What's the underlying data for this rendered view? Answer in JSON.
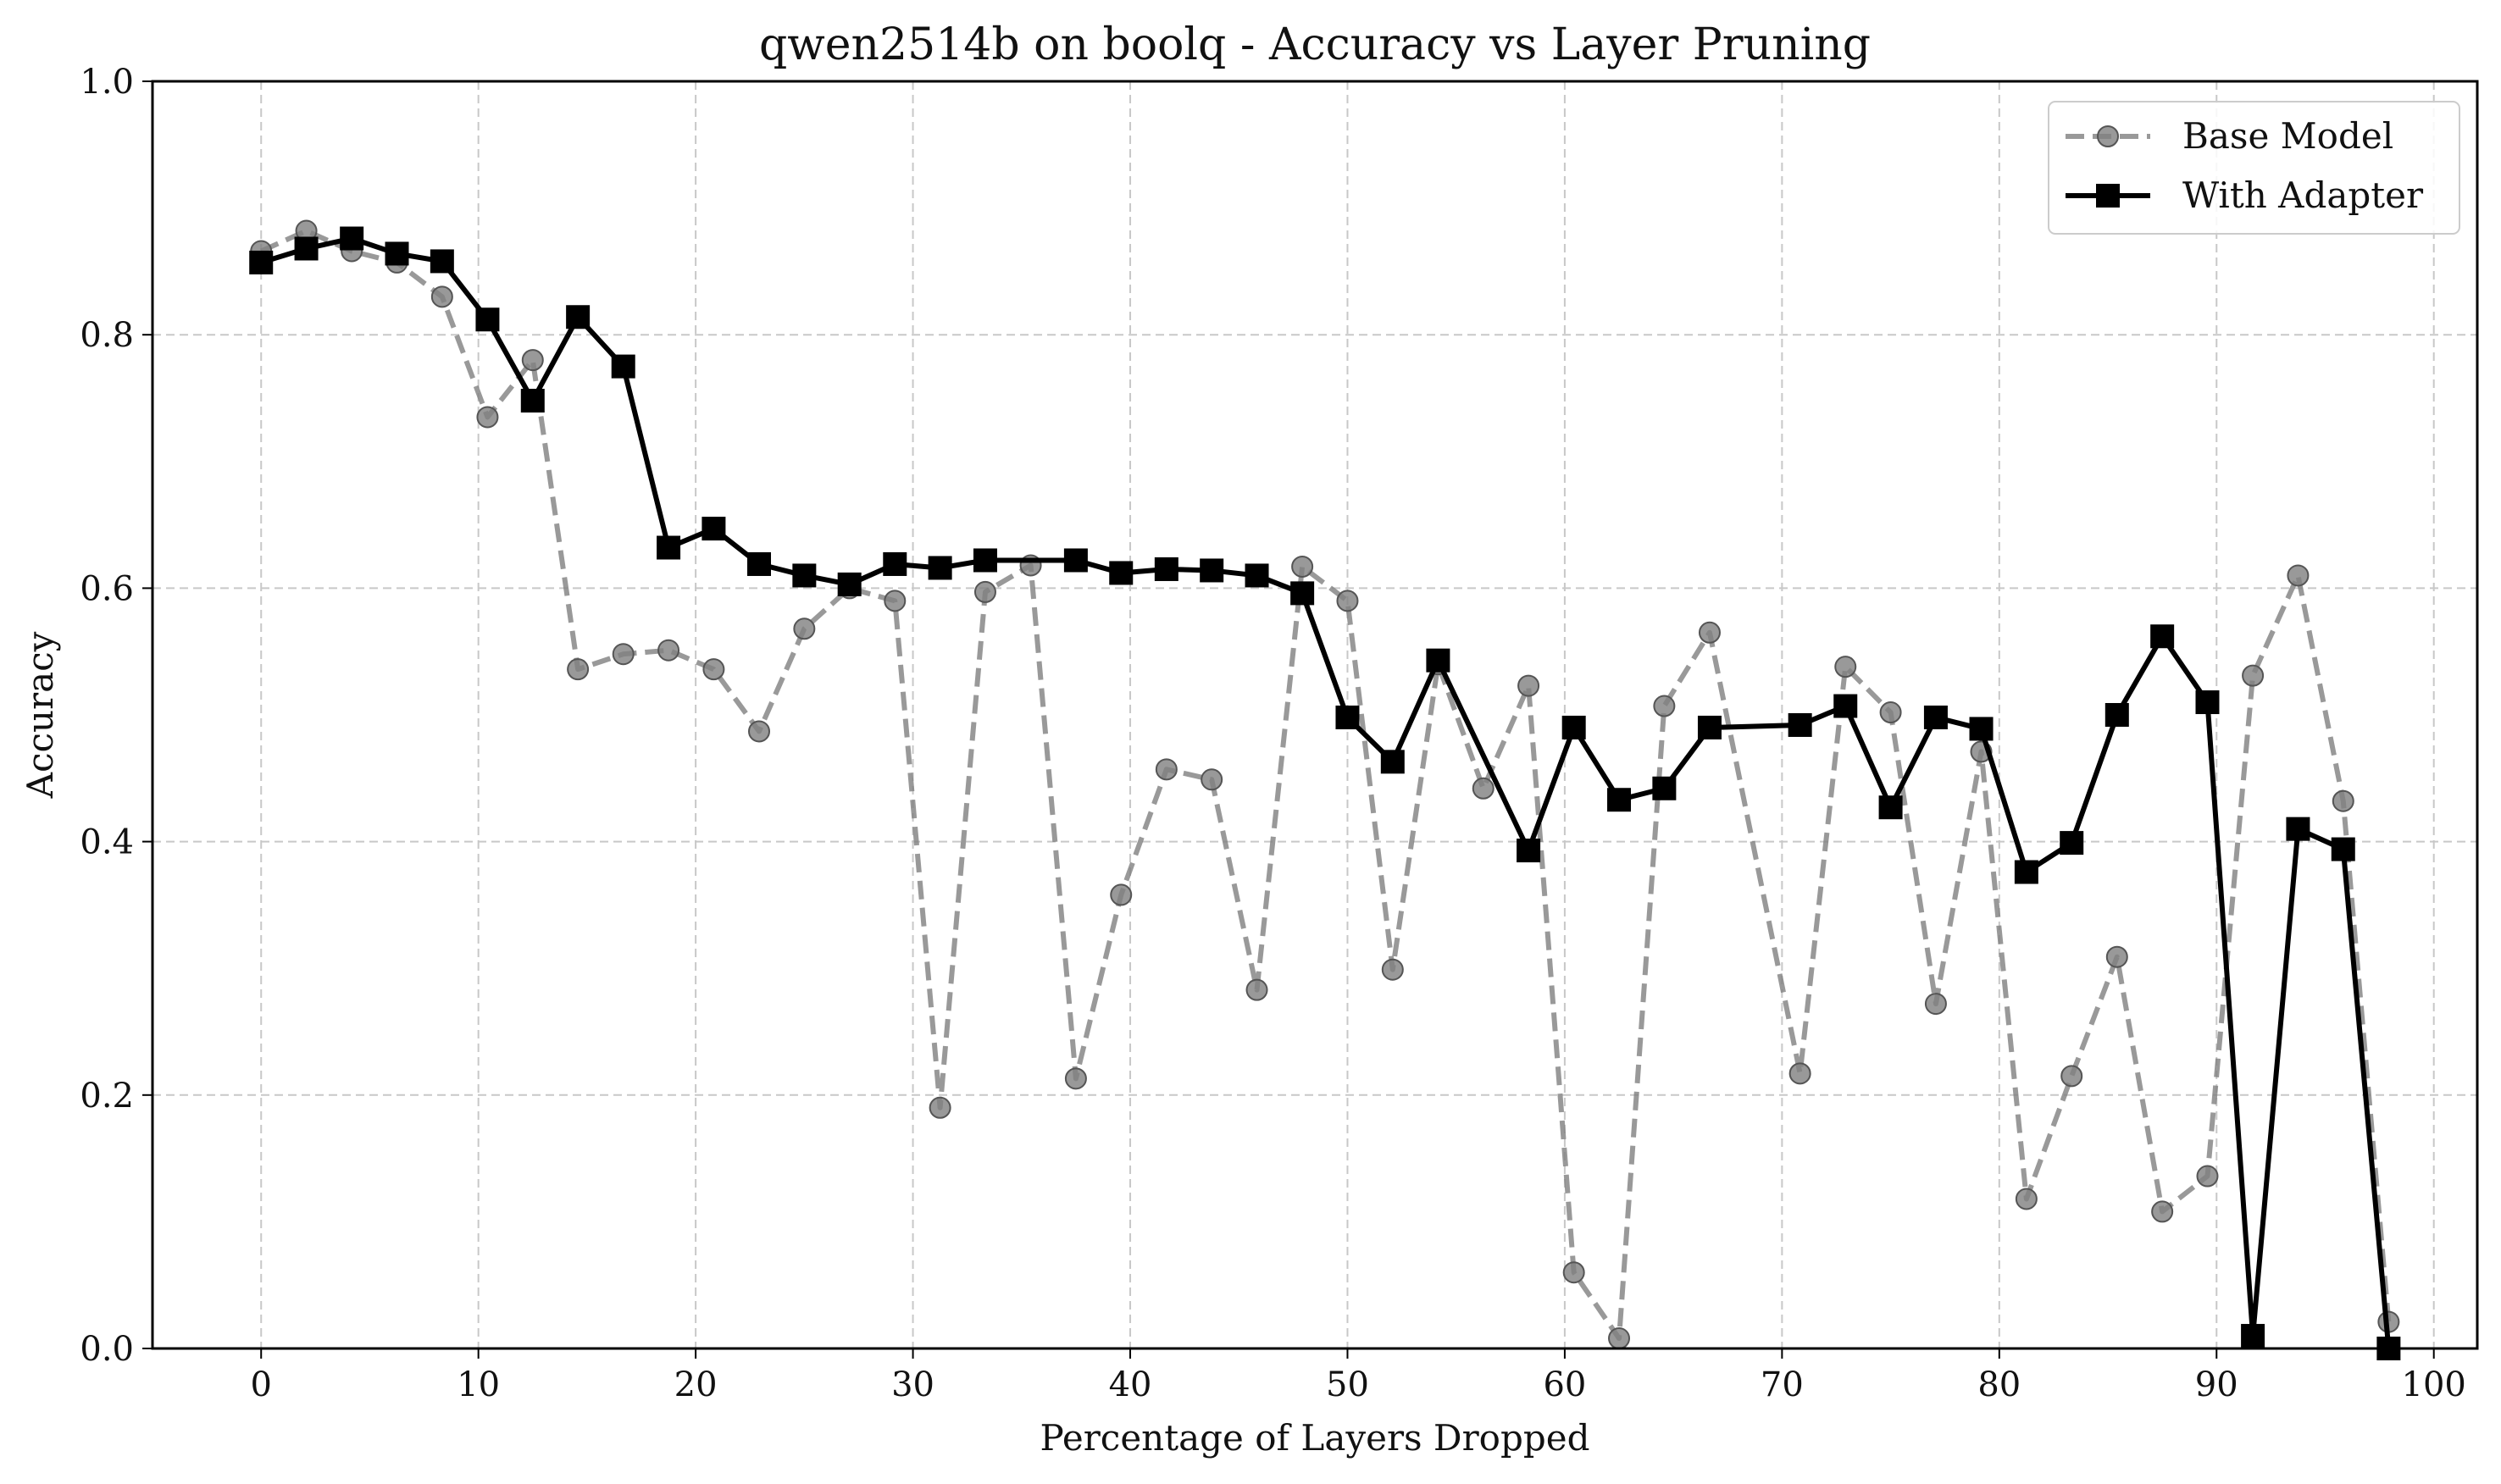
{
  "chart_data": {
    "type": "line",
    "title": "qwen2514b on boolq - Accuracy vs Layer Pruning",
    "xlabel": "Percentage of Layers Dropped",
    "ylabel": "Accuracy",
    "xlim": [
      -5,
      102
    ],
    "ylim": [
      0.0,
      1.0
    ],
    "xticks": [
      "0",
      "10",
      "20",
      "30",
      "40",
      "50",
      "60",
      "70",
      "80",
      "90",
      "100"
    ],
    "yticks": [
      "0.0",
      "0.2",
      "0.4",
      "0.6",
      "0.8",
      "1.0"
    ],
    "grid": true,
    "legend_position": "top-right",
    "series": [
      {
        "name": "Base Model",
        "color": "#808080",
        "line_style": "dashed",
        "marker": "circle",
        "x": [
          0,
          2.08,
          4.17,
          6.25,
          8.33,
          10.42,
          12.5,
          14.58,
          16.67,
          18.75,
          20.83,
          22.92,
          25.0,
          27.08,
          29.17,
          31.25,
          33.33,
          35.42,
          37.5,
          39.58,
          41.67,
          43.75,
          45.83,
          47.92,
          50.0,
          52.08,
          54.17,
          56.25,
          58.33,
          60.42,
          62.5,
          64.58,
          66.67,
          70.83,
          72.92,
          75.0,
          77.08,
          79.17,
          81.25,
          83.33,
          85.42,
          87.5,
          89.58,
          91.67,
          93.75,
          95.83,
          97.92
        ],
        "y": [
          0.866,
          0.882,
          0.866,
          0.857,
          0.83,
          0.735,
          0.78,
          0.536,
          0.548,
          0.551,
          0.536,
          0.487,
          0.568,
          0.6,
          0.59,
          0.19,
          0.597,
          0.618,
          0.213,
          0.358,
          0.457,
          0.449,
          0.283,
          0.617,
          0.59,
          0.299,
          0.54,
          0.442,
          0.523,
          0.06,
          0.008,
          0.507,
          0.565,
          0.217,
          0.538,
          0.502,
          0.272,
          0.471,
          0.118,
          0.215,
          0.309,
          0.108,
          0.136,
          0.531,
          0.61,
          0.432,
          0.021
        ]
      },
      {
        "name": "With Adapter",
        "color": "#000000",
        "line_style": "solid",
        "marker": "square",
        "x": [
          0,
          2.08,
          4.17,
          6.25,
          8.33,
          10.42,
          12.5,
          14.58,
          16.67,
          18.75,
          20.83,
          22.92,
          25.0,
          27.08,
          29.17,
          31.25,
          33.33,
          37.5,
          39.58,
          41.67,
          43.75,
          45.83,
          47.92,
          50.0,
          52.08,
          54.17,
          58.33,
          60.42,
          62.5,
          64.58,
          66.67,
          70.83,
          72.92,
          75.0,
          77.08,
          79.17,
          81.25,
          83.33,
          85.42,
          87.5,
          89.58,
          91.67,
          93.75,
          95.83,
          97.92
        ],
        "y": [
          0.857,
          0.868,
          0.876,
          0.864,
          0.858,
          0.812,
          0.748,
          0.814,
          0.775,
          0.632,
          0.647,
          0.619,
          0.61,
          0.603,
          0.619,
          0.616,
          0.622,
          0.622,
          0.612,
          0.615,
          0.614,
          0.61,
          0.596,
          0.498,
          0.463,
          0.543,
          0.393,
          0.49,
          0.433,
          0.442,
          0.49,
          0.492,
          0.507,
          0.427,
          0.498,
          0.489,
          0.376,
          0.399,
          0.5,
          0.562,
          0.51,
          0.01,
          0.41,
          0.394,
          0.0
        ]
      }
    ]
  }
}
